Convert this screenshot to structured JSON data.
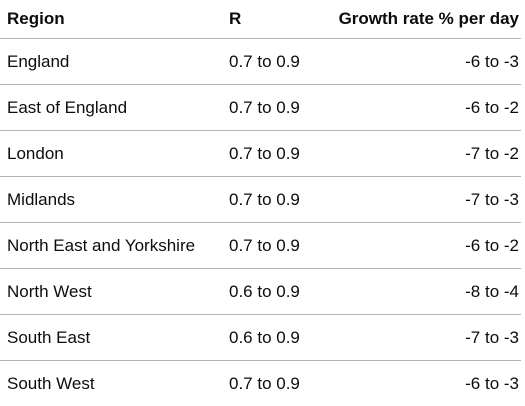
{
  "table": {
    "headers": {
      "region": "Region",
      "r": "R",
      "growth": "Growth rate % per day"
    },
    "rows": [
      {
        "region": "England",
        "r": "0.7 to 0.9",
        "growth": "-6 to -3"
      },
      {
        "region": "East of England",
        "r": "0.7 to 0.9",
        "growth": "-6 to -2"
      },
      {
        "region": "London",
        "r": "0.7 to 0.9",
        "growth": "-7 to -2"
      },
      {
        "region": "Midlands",
        "r": "0.7 to 0.9",
        "growth": "-7 to -3"
      },
      {
        "region": "North East and Yorkshire",
        "r": "0.7 to 0.9",
        "growth": "-6 to -2"
      },
      {
        "region": "North West",
        "r": "0.6 to 0.9",
        "growth": "-8 to -4"
      },
      {
        "region": "South East",
        "r": "0.6 to 0.9",
        "growth": "-7 to -3"
      },
      {
        "region": "South West",
        "r": "0.7 to 0.9",
        "growth": "-6 to -3"
      }
    ]
  }
}
